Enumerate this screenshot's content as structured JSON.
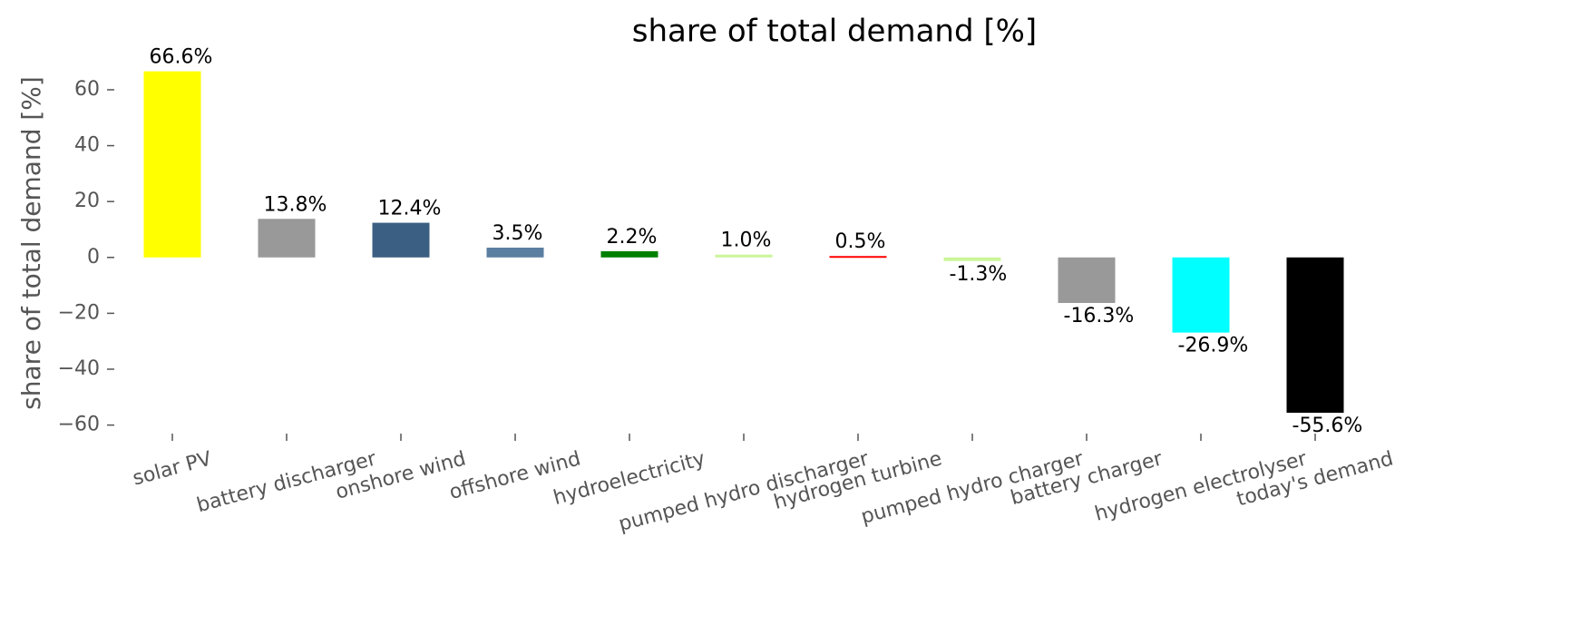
{
  "chart_data": {
    "type": "bar",
    "title": "share of total demand [%]",
    "ylabel": "share of total demand [%]",
    "categories": [
      "solar PV",
      "battery discharger",
      "onshore wind",
      "offshore wind",
      "hydroelectricity",
      "pumped hydro discharger",
      "hydrogen turbine",
      "pumped hydro charger",
      "battery charger",
      "hydrogen electrolyser",
      "today's demand"
    ],
    "values": [
      66.6,
      13.8,
      12.4,
      3.5,
      2.2,
      1.0,
      0.5,
      -1.3,
      -16.3,
      -26.9,
      -55.6
    ],
    "value_labels": [
      "66.6%",
      "13.8%",
      "12.4%",
      "3.5%",
      "2.2%",
      "1.0%",
      "0.5%",
      "-1.3%",
      "-16.3%",
      "-26.9%",
      "-55.6%"
    ],
    "colors": [
      "#ffff00",
      "#999999",
      "#3b5f82",
      "#5b7fa1",
      "#008000",
      "#ccf59a",
      "#ff0000",
      "#ccf59a",
      "#999999",
      "#00ffff",
      "#000000"
    ],
    "ylim": [
      -65,
      72
    ],
    "yticks": [
      {
        "value": -60,
        "label": "−60"
      },
      {
        "value": -40,
        "label": "−40"
      },
      {
        "value": -20,
        "label": "−20"
      },
      0,
      20,
      40,
      60
    ],
    "grid": false
  }
}
